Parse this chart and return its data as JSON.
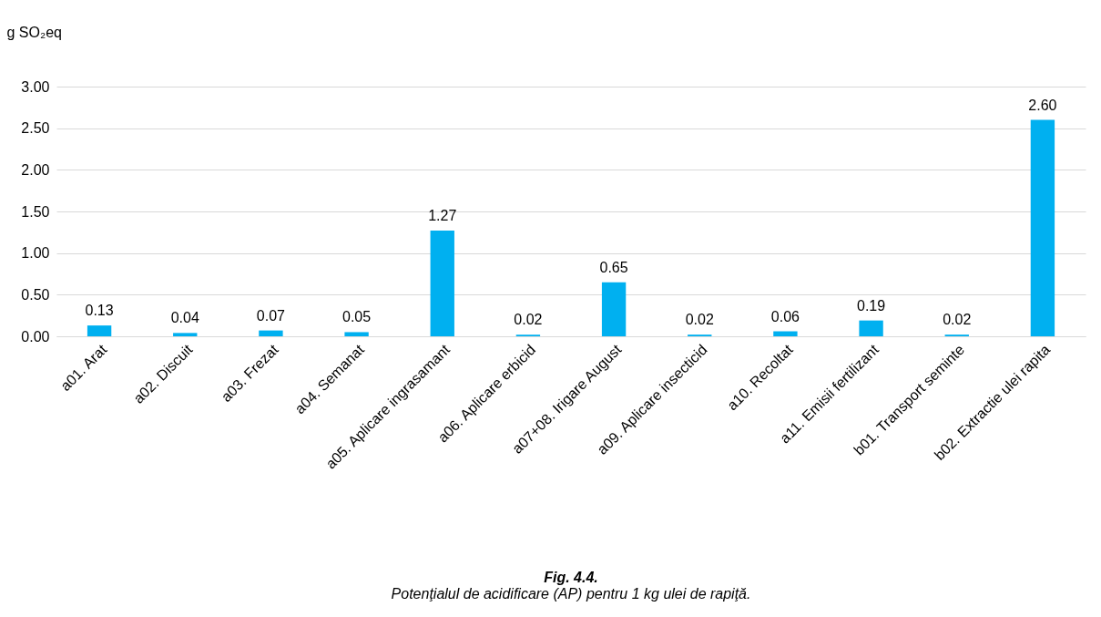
{
  "chart_data": {
    "type": "bar",
    "title": "Fig. 4.4.",
    "subtitle": "Potenţialul de acidificare (AP) pentru 1 kg ulei de rapiţă.",
    "ylabel": "g SO₂eq",
    "categories": [
      "a01. Arat",
      "a02. Discuit",
      "a03. Frezat",
      "a04. Semanat",
      "a05. Aplicare ingrasamant",
      "a06. Aplicare erbicid",
      "a07+08. Irigare August",
      "a09. Aplicare insecticid",
      "a10. Recoltat",
      "a11. Emisii fertilizant",
      "b01. Transport seminte",
      "b02. Extractie ulei rapita"
    ],
    "values": [
      0.13,
      0.04,
      0.07,
      0.05,
      1.27,
      0.02,
      0.65,
      0.02,
      0.06,
      0.19,
      0.02,
      2.6
    ],
    "value_labels": [
      "0.13",
      "0.04",
      "0.07",
      "0.05",
      "1.27",
      "0.02",
      "0.65",
      "0.02",
      "0.06",
      "0.19",
      "0.02",
      "2.60"
    ],
    "color": "#00b0f0",
    "ylim": [
      0,
      3
    ],
    "yticks": [
      {
        "value": 0,
        "label": "0.00"
      },
      {
        "value": 0.5,
        "label": "0.50"
      },
      {
        "value": 1,
        "label": "1.00"
      },
      {
        "value": 1.5,
        "label": "1.50"
      },
      {
        "value": 2,
        "label": "2.00"
      },
      {
        "value": 2.5,
        "label": "2.50"
      },
      {
        "value": 3,
        "label": "3.00"
      }
    ],
    "grid": "y"
  }
}
